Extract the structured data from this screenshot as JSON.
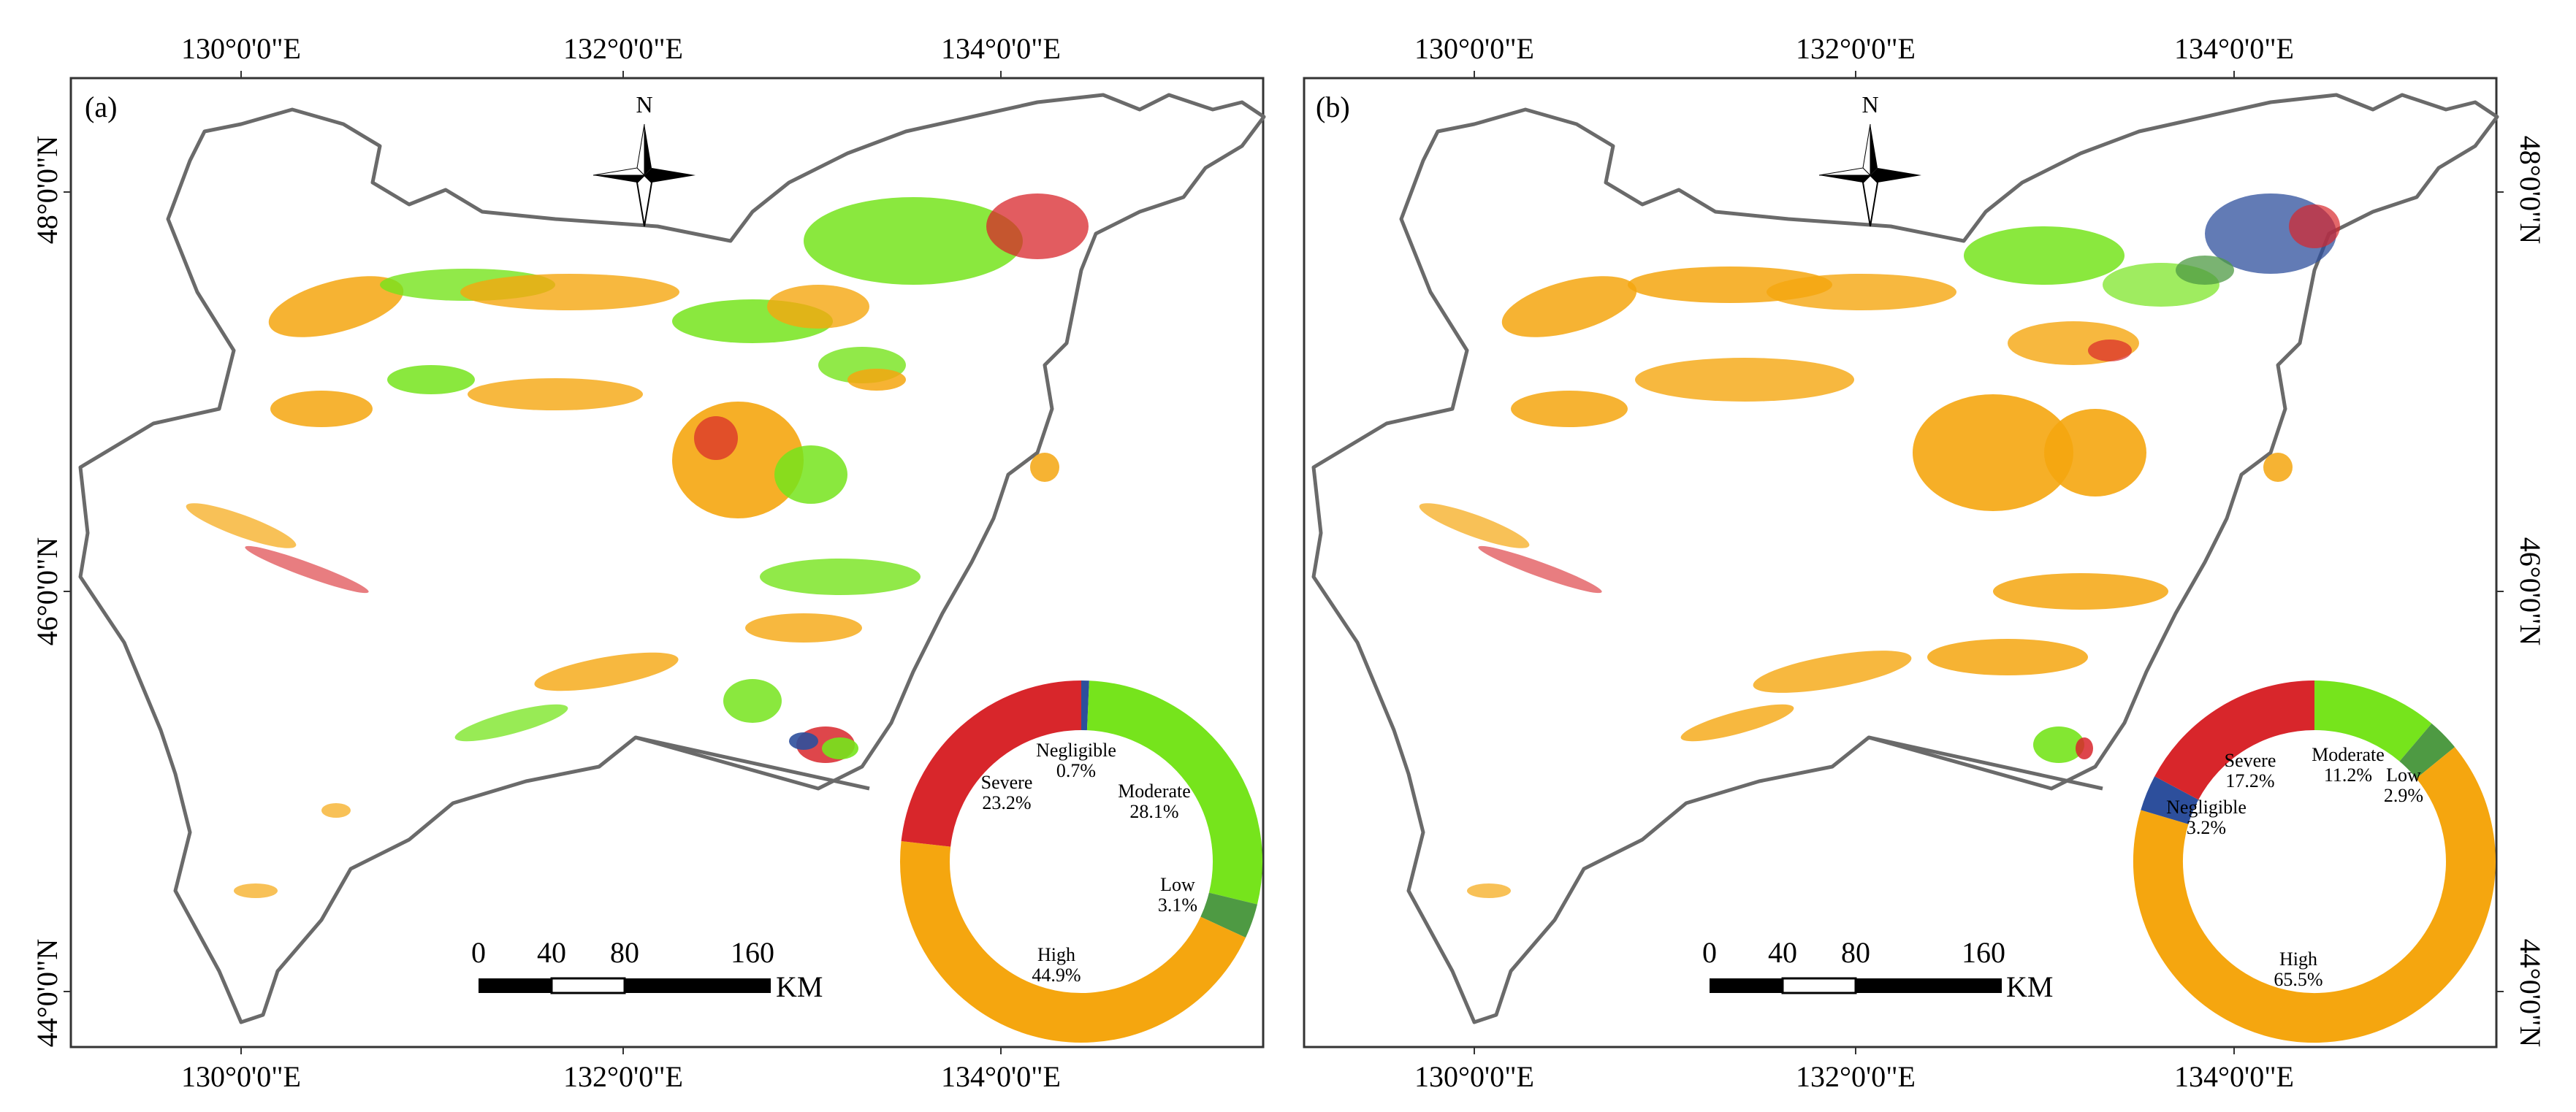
{
  "colors": {
    "severe": "#d8262b",
    "high": "#f5a60f",
    "moderate": "#76e41c",
    "low": "#4e9a43",
    "negligible": "#2d4f9c",
    "boundary": "#6a6a6a",
    "frame": "#333333"
  },
  "panels": [
    {
      "label": "(a)",
      "north": "N",
      "lon_labels": [
        "130°0'0\"E",
        "132°0'0\"E",
        "134°0'0\"E"
      ],
      "lat_labels": [
        "48°0'0\"N",
        "46°0'0\"N",
        "44°0'0\"N"
      ],
      "scale": {
        "ticks": [
          "0",
          "40",
          "80",
          "160"
        ],
        "unit": "KM"
      },
      "donut": [
        {
          "name": "Negligible",
          "pct": "0.7%",
          "value": 0.7,
          "color_key": "negligible"
        },
        {
          "name": "Moderate",
          "pct": "28.1%",
          "value": 28.1,
          "color_key": "moderate"
        },
        {
          "name": "Low",
          "pct": "3.1%",
          "value": 3.1,
          "color_key": "low"
        },
        {
          "name": "High",
          "pct": "44.9%",
          "value": 44.9,
          "color_key": "high"
        },
        {
          "name": "Severe",
          "pct": "23.2%",
          "value": 23.2,
          "color_key": "severe"
        }
      ]
    },
    {
      "label": "(b)",
      "north": "N",
      "lon_labels": [
        "130°0'0\"E",
        "132°0'0\"E",
        "134°0'0\"E"
      ],
      "lat_labels": [
        "48°0'0\"N",
        "46°0'0\"N",
        "44°0'0\"N"
      ],
      "scale": {
        "ticks": [
          "0",
          "40",
          "80",
          "160"
        ],
        "unit": "KM"
      },
      "donut": [
        {
          "name": "Moderate",
          "pct": "11.2%",
          "value": 11.2,
          "color_key": "moderate"
        },
        {
          "name": "Low",
          "pct": "2.9%",
          "value": 2.9,
          "color_key": "low"
        },
        {
          "name": "High",
          "pct": "65.5%",
          "value": 65.5,
          "color_key": "high"
        },
        {
          "name": "Negligible",
          "pct": "3.2%",
          "value": 3.2,
          "color_key": "negligible"
        },
        {
          "name": "Severe",
          "pct": "17.2%",
          "value": 17.2,
          "color_key": "severe"
        }
      ]
    }
  ]
}
